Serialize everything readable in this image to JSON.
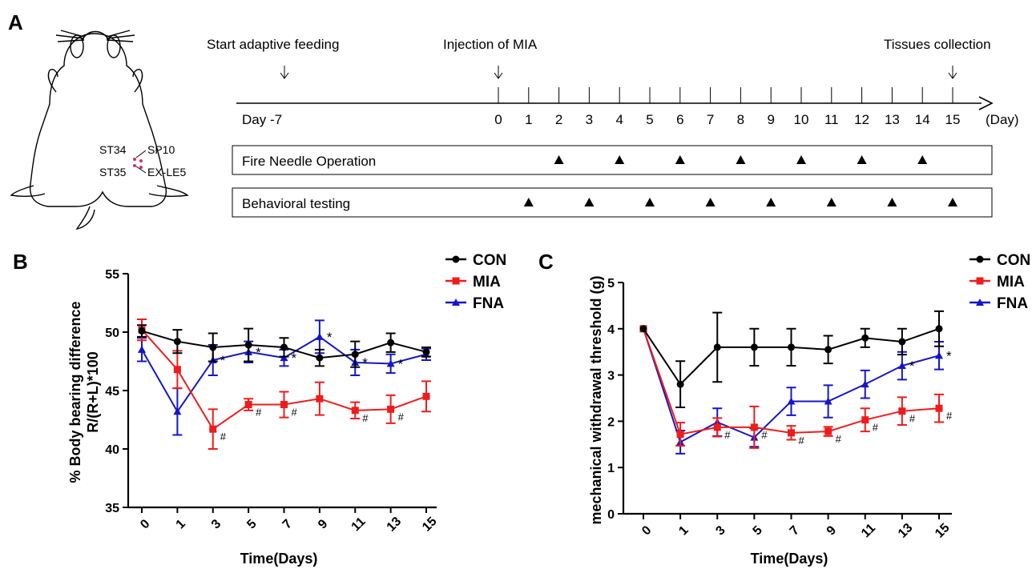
{
  "panels": {
    "A": "A",
    "B": "B",
    "C": "C"
  },
  "timeline": {
    "events": {
      "start": "Start adaptive feeding",
      "injection": "Injection of MIA",
      "collection": "Tissues collection"
    },
    "day_labels": [
      "Day -7",
      "0",
      "1",
      "2",
      "3",
      "4",
      "5",
      "6",
      "7",
      "8",
      "9",
      "10",
      "11",
      "12",
      "13",
      "14",
      "15"
    ],
    "unit_label": "(Day)",
    "operation_label": "Fire Needle Operation",
    "operation_days": [
      "2",
      "4",
      "6",
      "8",
      "10",
      "12",
      "14"
    ],
    "testing_label": "Behavioral testing",
    "testing_days": [
      "1",
      "3",
      "5",
      "7",
      "9",
      "11",
      "13",
      "15"
    ]
  },
  "rat": {
    "acupoints": [
      "ST34",
      "SP10",
      "ST35",
      "EX-LE5"
    ],
    "point_color": "#cc3366"
  },
  "legend": [
    {
      "name": "CON",
      "color": "#000000",
      "marker": "circle"
    },
    {
      "name": "MIA",
      "color": "#ee1c1c",
      "marker": "square"
    },
    {
      "name": "FNA",
      "color": "#1515c8",
      "marker": "triangle"
    }
  ],
  "chart_data": [
    {
      "type": "line",
      "panel": "B",
      "xlabel": "Time(Days)",
      "ylabel_lines": [
        "% Body bearing difference",
        "R/(R+L)*100"
      ],
      "categories": [
        "0",
        "1",
        "3",
        "5",
        "7",
        "9",
        "11",
        "13",
        "15"
      ],
      "ylim": [
        35,
        55
      ],
      "yticks": [
        35,
        40,
        45,
        50,
        55
      ],
      "series": [
        {
          "name": "CON",
          "color": "#000000",
          "marker": "circle",
          "values": [
            50.1,
            49.2,
            48.7,
            48.9,
            48.7,
            47.8,
            48.1,
            49.1,
            48.3
          ],
          "errors": [
            0.5,
            1.0,
            1.2,
            1.4,
            0.8,
            0.7,
            1.1,
            0.8,
            0.4
          ]
        },
        {
          "name": "MIA",
          "color": "#ee1c1c",
          "marker": "square",
          "values": [
            50.2,
            46.8,
            41.7,
            43.8,
            43.8,
            44.3,
            43.3,
            43.4,
            44.5
          ],
          "errors": [
            0.9,
            1.6,
            1.7,
            0.5,
            1.1,
            1.4,
            0.7,
            1.2,
            1.3
          ],
          "annotations": [
            "",
            "",
            "#",
            "#",
            "#",
            "",
            "#",
            "#",
            ""
          ]
        },
        {
          "name": "FNA",
          "color": "#1515c8",
          "marker": "triangle",
          "values": [
            48.5,
            43.2,
            47.6,
            48.3,
            47.8,
            49.6,
            47.4,
            47.3,
            48.1
          ],
          "errors": [
            1.0,
            2.0,
            1.3,
            0.9,
            0.7,
            1.4,
            1.1,
            0.8,
            0.5
          ],
          "annotations": [
            "",
            "",
            "*",
            "*",
            "*",
            "*",
            "*",
            "*",
            ""
          ]
        }
      ]
    },
    {
      "type": "line",
      "panel": "C",
      "xlabel": "Time(Days)",
      "ylabel": "mechanical withdrawal threshold (g)",
      "categories": [
        "0",
        "1",
        "3",
        "5",
        "7",
        "9",
        "11",
        "13",
        "15"
      ],
      "ylim": [
        0,
        5
      ],
      "yticks": [
        0,
        1,
        2,
        3,
        4,
        5
      ],
      "series": [
        {
          "name": "CON",
          "color": "#000000",
          "marker": "circle",
          "values": [
            4.0,
            2.8,
            3.6,
            3.6,
            3.6,
            3.55,
            3.8,
            3.72,
            4.0
          ],
          "errors": [
            0.0,
            0.5,
            0.75,
            0.4,
            0.4,
            0.3,
            0.2,
            0.28,
            0.38
          ]
        },
        {
          "name": "MIA",
          "color": "#ee1c1c",
          "marker": "square",
          "values": [
            4.0,
            1.72,
            1.87,
            1.87,
            1.75,
            1.78,
            2.03,
            2.22,
            2.28
          ],
          "errors": [
            0.0,
            0.25,
            0.2,
            0.45,
            0.15,
            0.1,
            0.25,
            0.3,
            0.3
          ],
          "annotations": [
            "",
            "",
            "#",
            "#",
            "#",
            "#",
            "#",
            "#",
            "#"
          ]
        },
        {
          "name": "FNA",
          "color": "#1515c8",
          "marker": "triangle",
          "values": [
            4.0,
            1.55,
            1.98,
            1.65,
            2.43,
            2.43,
            2.8,
            3.2,
            3.42
          ],
          "errors": [
            0.0,
            0.25,
            0.3,
            0.2,
            0.3,
            0.35,
            0.3,
            0.3,
            0.3
          ],
          "annotations": [
            "",
            "",
            "",
            "",
            "",
            "",
            "",
            "*",
            "*"
          ]
        }
      ]
    }
  ]
}
